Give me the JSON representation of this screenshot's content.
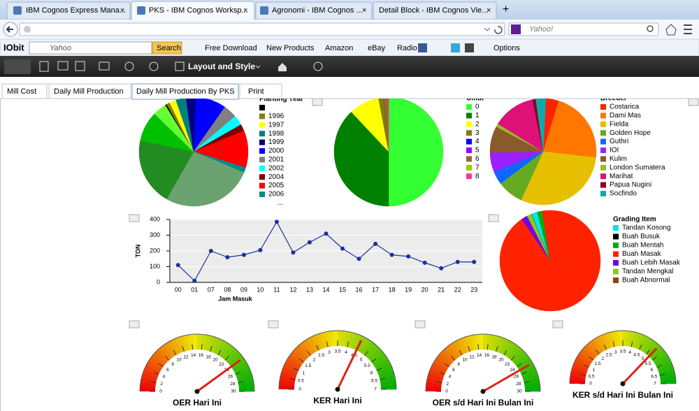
{
  "browser": {
    "tabs": [
      "IBM Cognos Express Mana...",
      "PKS - IBM Cognos Worksp...",
      "Agronomi - IBM Cognos ...",
      "Detail Block - IBM Cognos Vie..."
    ],
    "search_placeholder": "Yahoo!",
    "toolbar": {
      "logo": "IObit",
      "search_placeholder": "Yahoo",
      "search_button": "Search",
      "links": [
        "Free Download",
        "New Products",
        "Amazon",
        "eBay",
        "Radio"
      ],
      "options": "Options"
    }
  },
  "app_toolbar": {
    "layout_menu": "Layout and Style"
  },
  "report_tabs": [
    "Mill Cost",
    "Daily Mill Production",
    "Daily Mill Production By PKS",
    "Print"
  ],
  "chart_data": [
    {
      "type": "pie",
      "title": "Planting Year",
      "categories": [
        null,
        "1996",
        "1997",
        "1998",
        "1999",
        "2000",
        "2001",
        "2002",
        "2004",
        "2005",
        "2006",
        null,
        null,
        null,
        null
      ],
      "values": [
        0.5,
        1,
        2,
        3,
        3,
        9,
        4,
        3,
        2,
        11,
        1.5,
        27,
        20,
        9,
        4
      ],
      "colors": [
        "#000000",
        "#808000",
        "#ffff00",
        "#008080",
        "#000080",
        "#0000ff",
        "#808080",
        "#00ffff",
        "#800000",
        "#ff0000",
        "#008b8b",
        "#6aa36f",
        "#228b22",
        "#00c000",
        "#66ff33"
      ],
      "legend_overflow": "..."
    },
    {
      "type": "pie",
      "title": "Umur",
      "categories": [
        "0",
        "1",
        "2",
        "3",
        "4",
        "5",
        "6",
        "7",
        "8"
      ],
      "values": [
        50,
        38,
        9,
        1.5,
        0,
        0,
        1.5,
        0,
        0
      ],
      "colors": [
        "#33ff33",
        "#008000",
        "#ffff00",
        "#808000",
        "#0000ff",
        "#9900ff",
        "#996633",
        "#99cc00",
        "#ff3399"
      ]
    },
    {
      "type": "pie",
      "title": "Breeder",
      "categories": [
        "Costarica",
        "Dami Mas",
        "Fielda",
        "Golden Hope",
        "Guthri",
        "IOI",
        "Kulim",
        "London Sumatera",
        "Marihat",
        "Papua Nugini",
        "Socfindo"
      ],
      "values": [
        4,
        22,
        30,
        8,
        4,
        6,
        8,
        1,
        13,
        1,
        3
      ],
      "colors": [
        "#ff2200",
        "#ff7700",
        "#e6c000",
        "#66aa22",
        "#1166ff",
        "#9922ff",
        "#8a5a2a",
        "#99bb22",
        "#dd1177",
        "#880022",
        "#11aaaa"
      ]
    },
    {
      "type": "line",
      "x_label": "Jam Masuk",
      "y_label": "TON",
      "categories": [
        "00",
        "01",
        "07",
        "08",
        "09",
        "10",
        "11",
        "12",
        "13",
        "14",
        "15",
        "16",
        "17",
        "18",
        "19",
        "20",
        "21",
        "22",
        "23"
      ],
      "values": [
        110,
        10,
        200,
        160,
        175,
        205,
        385,
        190,
        255,
        310,
        215,
        150,
        245,
        175,
        165,
        125,
        90,
        130,
        130
      ],
      "color": "#1f2f9f",
      "ylim": [
        0,
        400
      ],
      "yticks": [
        0,
        100,
        200,
        300,
        400
      ],
      "grid": true
    },
    {
      "type": "pie",
      "title": "Grading Item",
      "categories": [
        "Tandan Kosong",
        "Buah Busuk",
        "Buah Mentah",
        "Buah Masak",
        "Buah Lebih Masak",
        "Tandan Mengkal",
        "Buah Abnormal"
      ],
      "values": [
        2,
        0,
        1.5,
        93,
        2,
        1.5,
        0
      ],
      "colors": [
        "#00e5e5",
        "#000000",
        "#00b000",
        "#ff2200",
        "#7700dd",
        "#88cc22",
        "#8b4513"
      ]
    },
    {
      "type": "gauge",
      "title": "OER Hari Ini",
      "values": [
        24
      ],
      "ylim": [
        0,
        30
      ],
      "yticks": [
        0,
        2,
        4,
        6,
        8,
        10,
        12,
        14,
        16,
        18,
        20,
        22,
        24,
        26,
        28,
        30
      ]
    },
    {
      "type": "gauge",
      "title": "KER Hari Ini",
      "values": [
        4.5
      ],
      "ylim": [
        0,
        7
      ],
      "yticks": [
        0,
        0.5,
        1,
        1.5,
        2,
        2.5,
        3,
        3.5,
        4,
        4.5,
        5,
        5.5,
        6,
        6.5,
        7
      ]
    },
    {
      "type": "gauge",
      "title": "OER s/d Hari Ini Bulan Ini",
      "values": [
        25
      ],
      "ylim": [
        0,
        30
      ],
      "yticks": [
        0,
        2,
        4,
        6,
        8,
        10,
        12,
        14,
        16,
        18,
        20,
        22,
        24,
        26,
        28,
        30
      ]
    },
    {
      "type": "gauge",
      "title": "KER s/d Hari Ini Bulan Ini",
      "values": [
        5.2
      ],
      "ylim": [
        0,
        7
      ],
      "yticks": [
        0,
        0.5,
        1,
        1.5,
        2,
        2.5,
        3,
        3.5,
        4,
        4.5,
        5,
        5.5,
        6,
        6.5,
        7
      ]
    }
  ]
}
